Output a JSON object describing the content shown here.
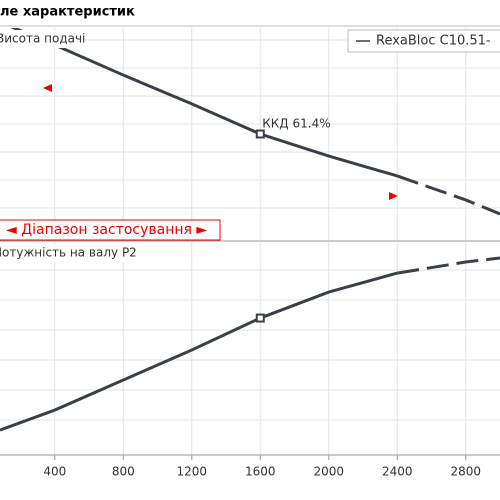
{
  "chart_data": [
    {
      "type": "line",
      "title": "ле характеристик",
      "ylabel": "Висота подачі",
      "annotation": "ККД  61.4%",
      "range_label": "◄ Діапазон застосування ►",
      "x": [
        80,
        400,
        800,
        1200,
        1600,
        2000,
        2400,
        2800,
        3000
      ],
      "series": [
        {
          "name": "RexaBloc C10.51-",
          "color": "#3a4049",
          "values": [
            102.8,
            92,
            77.8,
            64.2,
            50,
            39.6,
            30.2,
            null,
            null
          ]
        },
        {
          "color": "#3a4049",
          "dashed": true,
          "values": [
            null,
            null,
            null,
            null,
            null,
            null,
            30.2,
            18.9,
            12.3
          ]
        }
      ],
      "marker_index": 4,
      "xlim": [
        80,
        3000
      ],
      "ylim": [
        0,
        100
      ]
    },
    {
      "type": "line",
      "ylabel": "Потужність на валу  P2",
      "x": [
        80,
        400,
        800,
        1200,
        1600,
        2000,
        2400,
        2800,
        3000
      ],
      "series": [
        {
          "color": "#3a4049",
          "values": [
            11.7,
            21.1,
            35.2,
            49.3,
            64.3,
            76.5,
            85.4,
            null,
            null
          ]
        },
        {
          "color": "#3a4049",
          "dashed": true,
          "values": [
            null,
            null,
            null,
            null,
            null,
            null,
            85.4,
            90.6,
            92.5
          ]
        }
      ],
      "marker_index": 4,
      "xlim": [
        80,
        3000
      ],
      "ylim": [
        0,
        100
      ],
      "xticks": [
        400,
        800,
        1200,
        1600,
        2000,
        2400,
        2800
      ]
    }
  ]
}
